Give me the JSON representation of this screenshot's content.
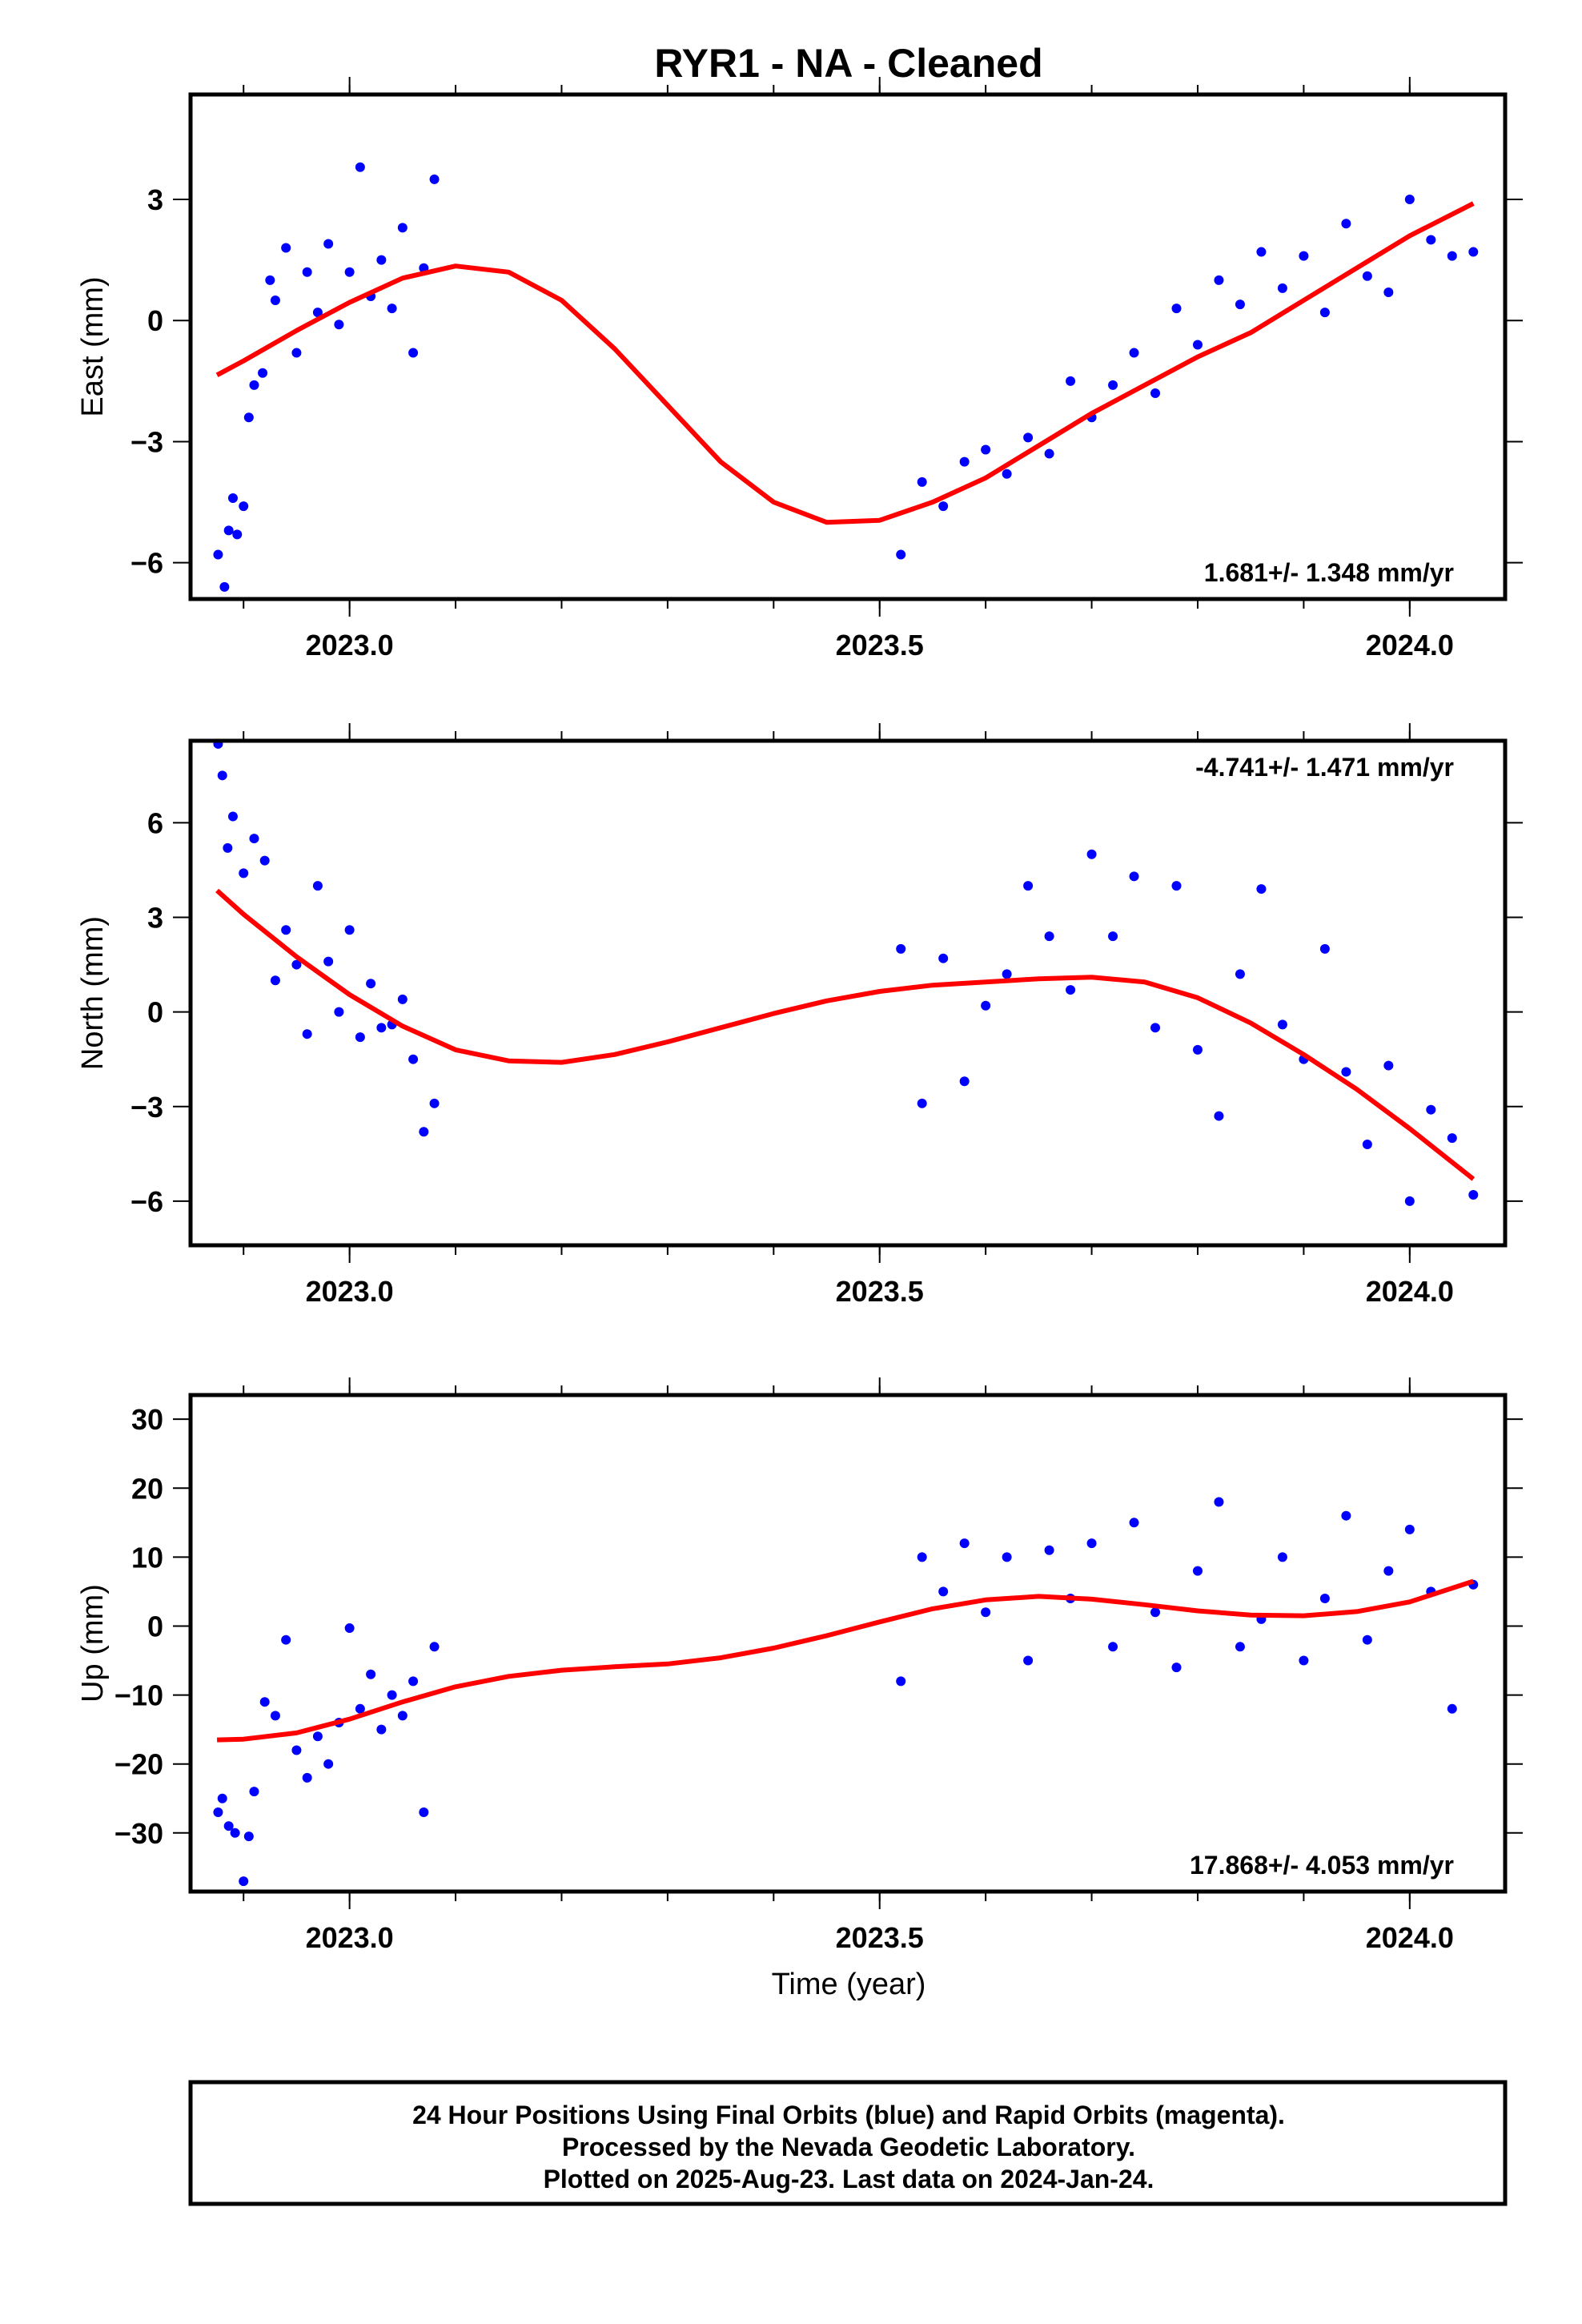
{
  "title": "RYR1  - NA - Cleaned",
  "xlabel": "Time (year)",
  "footer": [
    "24 Hour Positions Using Final Orbits (blue) and Rapid Orbits (magenta).",
    "Processed by the Nevada Geodetic Laboratory.",
    "Plotted on 2025-Aug-23. Last data on 2024-Jan-24."
  ],
  "colors": {
    "points": "#0000ff",
    "model": "#ff0000",
    "frame": "#000000"
  },
  "chart_data": [
    {
      "type": "scatter",
      "panel": "east",
      "ylabel": "East (mm)",
      "rate_label": "1.681+/- 1.348 mm/yr",
      "rate_position": "bottom-right",
      "xlim": [
        2022.85,
        2024.09
      ],
      "ylim": [
        -6.9,
        5.6
      ],
      "xticks": [
        2023.0,
        2023.5,
        2024.0
      ],
      "xtick_labels": [
        "2023.0",
        "2023.5",
        "2024.0"
      ],
      "yticks": [
        -6,
        -3,
        0,
        3
      ],
      "ytick_labels": [
        "−6",
        "−3",
        "0",
        "3"
      ],
      "series": [
        {
          "kind": "points",
          "x": [
            2022.876,
            2022.882,
            2022.886,
            2022.89,
            2022.894,
            2022.9,
            2022.905,
            2022.91,
            2022.918,
            2022.925,
            2022.93,
            2022.94,
            2022.95,
            2022.96,
            2022.97,
            2022.98,
            2022.99,
            2023.0,
            2023.01,
            2023.02,
            2023.03,
            2023.04,
            2023.05,
            2023.06,
            2023.07,
            2023.08,
            2023.52,
            2023.54,
            2023.56,
            2023.58,
            2023.6,
            2023.62,
            2023.64,
            2023.66,
            2023.68,
            2023.7,
            2023.72,
            2023.74,
            2023.76,
            2023.78,
            2023.8,
            2023.82,
            2023.84,
            2023.86,
            2023.88,
            2023.9,
            2023.92,
            2023.94,
            2023.96,
            2023.98,
            2024.0,
            2024.02,
            2024.04,
            2024.06
          ],
          "y": [
            -5.8,
            -6.6,
            -5.2,
            -4.4,
            -5.3,
            -4.6,
            -2.4,
            -1.6,
            -1.3,
            1.0,
            0.5,
            1.8,
            -0.8,
            1.2,
            0.2,
            1.9,
            -0.1,
            1.2,
            3.8,
            0.6,
            1.5,
            0.3,
            2.3,
            -0.8,
            1.3,
            3.5,
            -5.8,
            -4.0,
            -4.6,
            -3.5,
            -3.2,
            -3.8,
            -2.9,
            -3.3,
            -1.5,
            -2.4,
            -1.6,
            -0.8,
            -1.8,
            0.3,
            -0.6,
            1.0,
            0.4,
            1.7,
            0.8,
            1.6,
            0.2,
            2.4,
            1.1,
            0.7,
            3.0,
            2.0,
            1.6,
            1.7
          ]
        },
        {
          "kind": "model",
          "x": [
            2022.875,
            2022.9,
            2022.95,
            2023.0,
            2023.05,
            2023.1,
            2023.15,
            2023.2,
            2023.25,
            2023.3,
            2023.35,
            2023.4,
            2023.45,
            2023.5,
            2023.55,
            2023.6,
            2023.65,
            2023.7,
            2023.75,
            2023.8,
            2023.85,
            2023.9,
            2023.95,
            2024.0,
            2024.06
          ],
          "y": [
            -1.35,
            -1.0,
            -0.25,
            0.45,
            1.05,
            1.35,
            1.2,
            0.5,
            -0.7,
            -2.1,
            -3.5,
            -4.5,
            -5.0,
            -4.95,
            -4.5,
            -3.9,
            -3.1,
            -2.3,
            -1.6,
            -0.9,
            -0.3,
            0.5,
            1.3,
            2.1,
            2.9
          ]
        }
      ]
    },
    {
      "type": "scatter",
      "panel": "north",
      "ylabel": "North (mm)",
      "rate_label": "-4.741+/- 1.471 mm/yr",
      "rate_position": "top-right",
      "xlim": [
        2022.85,
        2024.09
      ],
      "ylim": [
        -7.4,
        8.6
      ],
      "xticks": [
        2023.0,
        2023.5,
        2024.0
      ],
      "xtick_labels": [
        "2023.0",
        "2023.5",
        "2024.0"
      ],
      "yticks": [
        -6,
        -3,
        0,
        3,
        6
      ],
      "ytick_labels": [
        "−6",
        "−3",
        "0",
        "3",
        "6"
      ],
      "series": [
        {
          "kind": "points",
          "x": [
            2022.876,
            2022.88,
            2022.885,
            2022.89,
            2022.9,
            2022.91,
            2022.92,
            2022.93,
            2022.94,
            2022.95,
            2022.96,
            2022.97,
            2022.98,
            2022.99,
            2023.0,
            2023.01,
            2023.02,
            2023.03,
            2023.04,
            2023.05,
            2023.06,
            2023.07,
            2023.08,
            2023.52,
            2023.54,
            2023.56,
            2023.58,
            2023.6,
            2023.62,
            2023.64,
            2023.66,
            2023.68,
            2023.7,
            2023.72,
            2023.74,
            2023.76,
            2023.78,
            2023.8,
            2023.82,
            2023.84,
            2023.86,
            2023.88,
            2023.9,
            2023.92,
            2023.94,
            2023.96,
            2023.98,
            2024.0,
            2024.02,
            2024.04,
            2024.06
          ],
          "y": [
            8.5,
            7.5,
            5.2,
            6.2,
            4.4,
            5.5,
            4.8,
            1.0,
            2.6,
            1.5,
            -0.7,
            4.0,
            1.6,
            0.0,
            2.6,
            -0.8,
            0.9,
            -0.5,
            -0.4,
            0.4,
            -1.5,
            -3.8,
            -2.9,
            2.0,
            -2.9,
            1.7,
            -2.2,
            0.2,
            1.2,
            4.0,
            2.4,
            0.7,
            5.0,
            2.4,
            4.3,
            -0.5,
            4.0,
            -1.2,
            -3.3,
            1.2,
            3.9,
            -0.4,
            -1.5,
            2.0,
            -1.9,
            -4.2,
            -1.7,
            -6.0,
            -3.1,
            -4.0,
            -5.8
          ]
        },
        {
          "kind": "model",
          "x": [
            2022.875,
            2022.9,
            2022.95,
            2023.0,
            2023.05,
            2023.1,
            2023.15,
            2023.2,
            2023.25,
            2023.3,
            2023.35,
            2023.4,
            2023.45,
            2023.5,
            2023.55,
            2023.6,
            2023.65,
            2023.7,
            2023.75,
            2023.8,
            2023.85,
            2023.9,
            2023.95,
            2024.0,
            2024.06
          ],
          "y": [
            3.85,
            3.1,
            1.75,
            0.55,
            -0.45,
            -1.2,
            -1.55,
            -1.6,
            -1.35,
            -0.95,
            -0.5,
            -0.05,
            0.35,
            0.65,
            0.85,
            0.95,
            1.05,
            1.1,
            0.95,
            0.45,
            -0.35,
            -1.35,
            -2.45,
            -3.7,
            -5.3
          ]
        }
      ]
    },
    {
      "type": "scatter",
      "panel": "up",
      "ylabel": "Up (mm)",
      "rate_label": "17.868+/- 4.053 mm/yr",
      "rate_position": "bottom-right",
      "xlim": [
        2022.85,
        2024.09
      ],
      "ylim": [
        -38.5,
        33.5
      ],
      "xticks": [
        2023.0,
        2023.5,
        2024.0
      ],
      "xtick_labels": [
        "2023.0",
        "2023.5",
        "2024.0"
      ],
      "yticks": [
        -30,
        -20,
        -10,
        0,
        10,
        20,
        30
      ],
      "ytick_labels": [
        "−30",
        "−20",
        "−10",
        "0",
        "10",
        "20",
        "30"
      ],
      "series": [
        {
          "kind": "points",
          "x": [
            2022.876,
            2022.88,
            2022.886,
            2022.892,
            2022.9,
            2022.905,
            2022.91,
            2022.92,
            2022.93,
            2022.94,
            2022.95,
            2022.96,
            2022.97,
            2022.98,
            2022.99,
            2023.0,
            2023.01,
            2023.02,
            2023.03,
            2023.04,
            2023.05,
            2023.06,
            2023.07,
            2023.08,
            2023.52,
            2023.54,
            2023.56,
            2023.58,
            2023.6,
            2023.62,
            2023.64,
            2023.66,
            2023.68,
            2023.7,
            2023.72,
            2023.74,
            2023.76,
            2023.78,
            2023.8,
            2023.82,
            2023.84,
            2023.86,
            2023.88,
            2023.9,
            2023.92,
            2023.94,
            2023.96,
            2023.98,
            2024.0,
            2024.02,
            2024.04,
            2024.06
          ],
          "y": [
            -27,
            -25,
            -29,
            -30,
            -37,
            -30.5,
            -24,
            -11,
            -13,
            -2,
            -18,
            -22,
            -16,
            -20,
            -14,
            -0.3,
            -12,
            -7,
            -15,
            -10,
            -13,
            -8,
            -27,
            -3,
            -8,
            10,
            5,
            12,
            2,
            10,
            -5,
            11,
            4,
            12,
            -3,
            15,
            2,
            -6,
            8,
            18,
            -3,
            1,
            10,
            -5,
            4,
            16,
            -2,
            8,
            14,
            5,
            -12,
            6
          ]
        },
        {
          "kind": "model",
          "x": [
            2022.875,
            2022.9,
            2022.95,
            2023.0,
            2023.05,
            2023.1,
            2023.15,
            2023.2,
            2023.25,
            2023.3,
            2023.35,
            2023.4,
            2023.45,
            2023.5,
            2023.55,
            2023.6,
            2023.65,
            2023.7,
            2023.75,
            2023.8,
            2023.85,
            2023.9,
            2023.95,
            2024.0,
            2024.06
          ],
          "y": [
            -16.5,
            -16.4,
            -15.5,
            -13.5,
            -11.0,
            -8.8,
            -7.3,
            -6.4,
            -5.9,
            -5.5,
            -4.6,
            -3.2,
            -1.4,
            0.6,
            2.5,
            3.8,
            4.3,
            3.9,
            3.1,
            2.2,
            1.6,
            1.5,
            2.1,
            3.5,
            6.5
          ]
        }
      ]
    }
  ]
}
